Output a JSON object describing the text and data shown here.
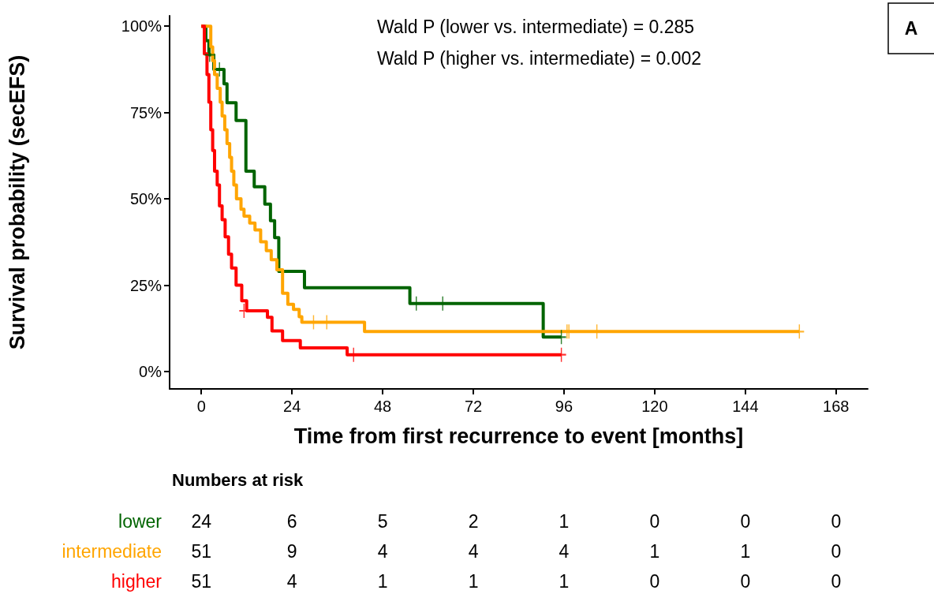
{
  "chart_data": {
    "type": "step",
    "xlabel": "Time from first recurrence to event [months]",
    "ylabel": "Survival probability (secEFS)",
    "xlim": [
      -8.4,
      176.4
    ],
    "xticks": [
      0,
      24,
      48,
      72,
      96,
      120,
      144,
      168
    ],
    "ylim": [
      -5,
      103
    ],
    "yticks": [
      {
        "value": 0,
        "label": "0%"
      },
      {
        "value": 25,
        "label": "25%"
      },
      {
        "value": 50,
        "label": "50%"
      },
      {
        "value": 75,
        "label": "75%"
      },
      {
        "value": 100,
        "label": "100%"
      }
    ],
    "grid": false,
    "annotations": [
      "Wald P (lower vs. intermediate) = 0.285",
      "Wald P (higher vs. intermediate) = 0.002",
      "A",
      "Numbers at risk",
      "24",
      "6",
      "5",
      "2",
      "1",
      "0",
      "0",
      "0",
      "51",
      "9",
      "4",
      "4",
      "4",
      "1",
      "1",
      "0",
      "51",
      "4",
      "1",
      "1",
      "1",
      "0",
      "0",
      "0"
    ],
    "series": [
      {
        "name": "lower",
        "color": "#006400",
        "x": [
          0,
          1.2,
          2,
          3.3,
          6,
          6.8,
          9.2,
          11.8,
          14,
          16.8,
          18.3,
          19.4,
          20.5,
          27.3,
          55.2,
          90.5,
          95.3
        ],
        "values": [
          100,
          95.8,
          91.7,
          87.5,
          83.3,
          77.8,
          72.7,
          58,
          53.5,
          48.5,
          43.7,
          38.8,
          29,
          24.3,
          19.7,
          10,
          10
        ]
      },
      {
        "name": "intermediate",
        "color": "#ffa500",
        "x": [
          0,
          2,
          2.5,
          3,
          3.5,
          4.2,
          5,
          5.5,
          6.2,
          6.8,
          7.5,
          8,
          8.6,
          9.3,
          10.5,
          11.3,
          12.8,
          14.2,
          15.7,
          17.2,
          18.5,
          20,
          21.5,
          22.9,
          24.4,
          25.9,
          26.6,
          43.2,
          158.3
        ],
        "values": [
          100,
          100,
          94,
          90,
          86,
          82,
          78,
          74,
          70,
          66,
          62,
          58,
          54,
          50,
          47,
          45,
          43,
          41,
          37.6,
          35,
          32.4,
          29.5,
          22.7,
          19.5,
          18,
          15.9,
          14.3,
          11.6,
          11.6
        ]
      },
      {
        "name": "higher",
        "color": "#ff0000",
        "x": [
          0,
          0.8,
          1.5,
          2,
          2.5,
          3,
          3.5,
          4.2,
          4.8,
          5.5,
          6.3,
          7.2,
          8,
          9.2,
          10.7,
          12,
          17.5,
          18.7,
          21.5,
          26.2,
          38.6,
          95.3
        ],
        "values": [
          100,
          92,
          86,
          78,
          70,
          64,
          58,
          54,
          48,
          44,
          39,
          34,
          30,
          25,
          20.5,
          17.6,
          15.7,
          11.8,
          9,
          6.9,
          4.9,
          4.9
        ]
      },
      {
        "type": "scatter",
        "marker": "cross",
        "color": "#006400",
        "x": [
          2.2,
          4.8,
          56.9,
          63.9,
          95.3
        ],
        "values": [
          91.7,
          87.5,
          19.7,
          19.7,
          10
        ]
      },
      {
        "type": "scatter",
        "marker": "cross",
        "color": "#ffa500",
        "x": [
          29.7,
          33.2,
          96.8,
          97.3,
          104.7,
          158.3
        ],
        "values": [
          14.3,
          14.3,
          11.6,
          11.6,
          11.6,
          11.6
        ]
      },
      {
        "type": "scatter",
        "marker": "cross",
        "color": "#ff0000",
        "x": [
          11.3,
          40.3,
          95.3
        ],
        "values": [
          17.6,
          4.9,
          4.9
        ]
      }
    ]
  }
}
